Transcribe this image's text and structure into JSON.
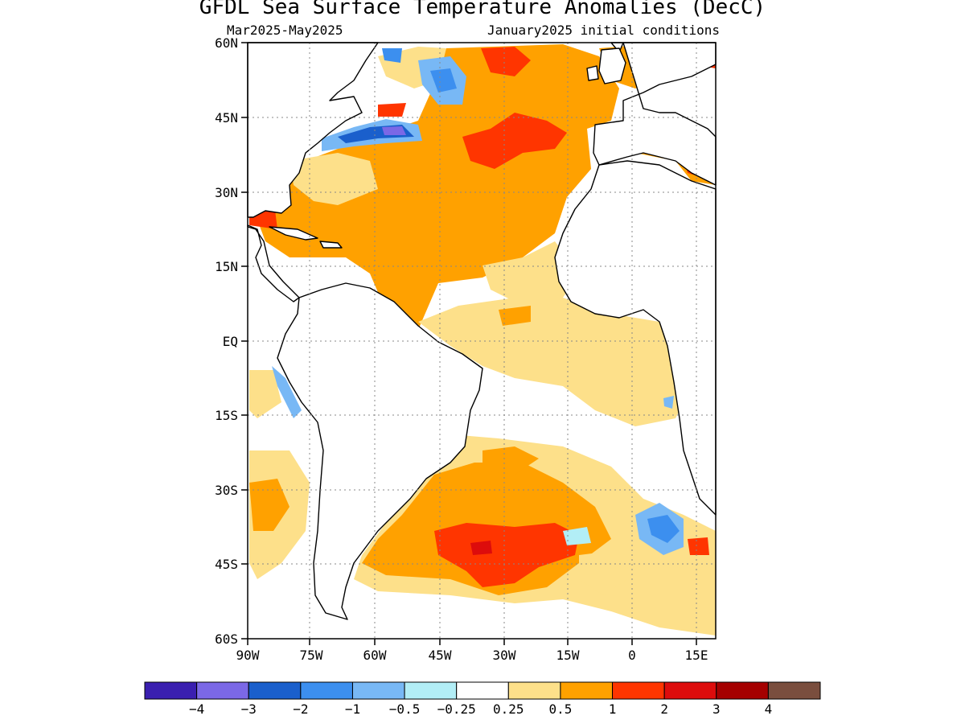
{
  "title": "GFDL Sea Surface Temperature Anomalies (DecC)",
  "subtitle_left": "Mar2025-May2025",
  "subtitle_right": "January2025 initial conditions",
  "axes": {
    "lat_labels": [
      "60N",
      "45N",
      "30N",
      "15N",
      "EQ",
      "15S",
      "30S",
      "45S",
      "60S"
    ],
    "lon_labels": [
      "90W",
      "75W",
      "60W",
      "45W",
      "30W",
      "15W",
      "0",
      "15E"
    ]
  },
  "colorbar": {
    "colors": [
      "#3a1fb0",
      "#7b68e6",
      "#1a5fcc",
      "#3c8fef",
      "#78b8f5",
      "#b2eef6",
      "#ffffff",
      "#fde08a",
      "#ffa100",
      "#ff3500",
      "#dd0c0c",
      "#a50000",
      "#7a4e3e"
    ],
    "labels": [
      "−4",
      "−3",
      "−2",
      "−1",
      "−0.5",
      "−0.25",
      "0.25",
      "0.5",
      "1",
      "2",
      "3",
      "4"
    ]
  },
  "chart_data": {
    "type": "heatmap",
    "title": "GFDL Sea Surface Temperature Anomalies (DecC)",
    "subtitle": "Mar2025-May2025  January2025 initial conditions",
    "xlim": [
      -90,
      17
    ],
    "ylim": [
      -60,
      60
    ],
    "x_ticks": [
      "90W",
      "75W",
      "60W",
      "45W",
      "30W",
      "15W",
      "0",
      "15E"
    ],
    "y_ticks": [
      "60N",
      "45N",
      "30N",
      "15N",
      "EQ",
      "15S",
      "30S",
      "45S",
      "60S"
    ],
    "levels": [
      -4,
      -3,
      -2,
      -1,
      -0.5,
      -0.25,
      0.25,
      0.5,
      1,
      2,
      3,
      4
    ],
    "grid": true,
    "regions": [
      {
        "area": "North Atlantic subtropics (10N-45N, 80W-15W)",
        "anomaly": "0.5 to 1"
      },
      {
        "area": "North Atlantic 35N-45N, 40W-30W",
        "anomaly": "1 to 2"
      },
      {
        "area": "Gulf of St. Lawrence / Nova Scotia shelf (~42N, 65W)",
        "anomaly": "-1 to -3"
      },
      {
        "area": "Labrador Sea (~55N, 50W)",
        "anomaly": "-0.5 to -2"
      },
      {
        "area": "Equatorial / tropical South Atlantic",
        "anomaly": "0.25 to 0.5"
      },
      {
        "area": "South Atlantic 35S-50S, 50W-10W",
        "anomaly": "0.5 to 2"
      },
      {
        "area": "Off Namibia / South Africa (~38S, 5E)",
        "anomaly": "-0.5 to -2"
      },
      {
        "area": "Mediterranean",
        "anomaly": "0.5 to 2"
      }
    ]
  }
}
